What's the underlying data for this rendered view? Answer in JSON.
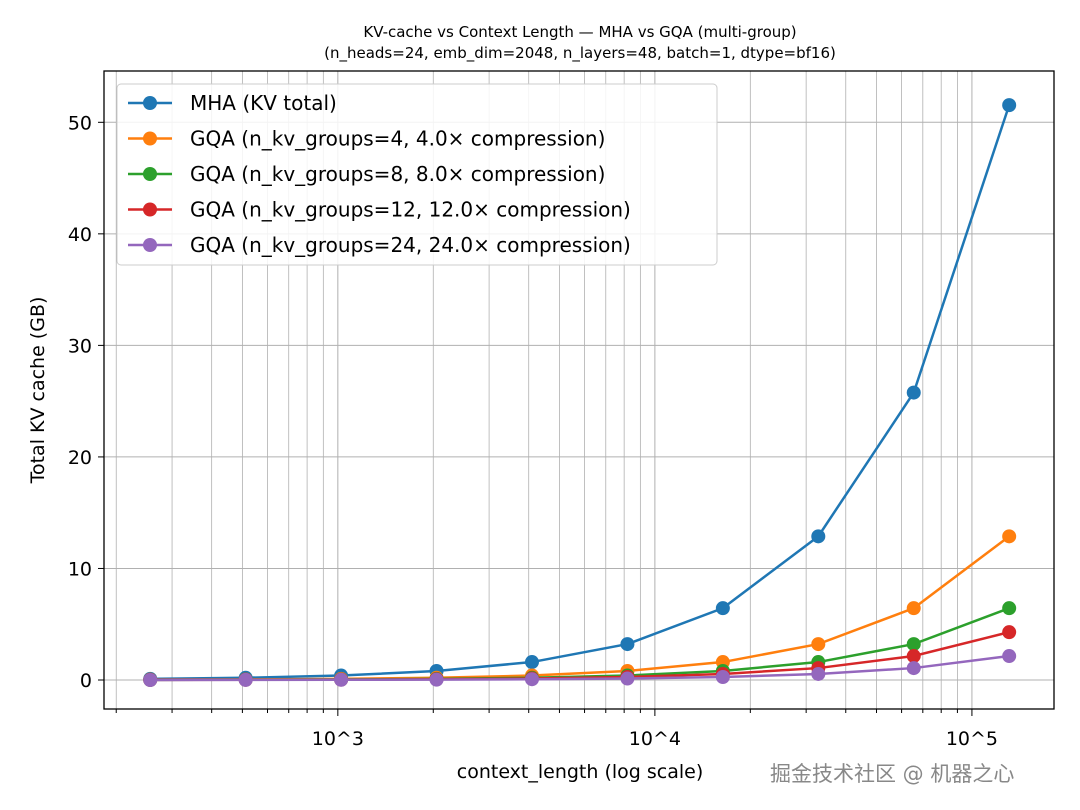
{
  "chart_data": {
    "type": "line",
    "title": "KV-cache vs Context Length — MHA vs GQA (multi-group)",
    "subtitle": "(n_heads=24, emb_dim=2048, n_layers=48, batch=1, dtype=bf16)",
    "xlabel": "context_length (log scale)",
    "ylabel": "Total KV cache (GB)",
    "xscale": "log",
    "xlim": [
      183,
      181500
    ],
    "ylim": [
      -2.6,
      54.6
    ],
    "xticks": [
      {
        "value": 1000,
        "label": "10^3"
      },
      {
        "value": 10000,
        "label": "10^4"
      },
      {
        "value": 100000,
        "label": "10^5"
      }
    ],
    "yticks": [
      0,
      10,
      20,
      30,
      40,
      50
    ],
    "grid": true,
    "legend_position": "top-left",
    "x": [
      256,
      512,
      1024,
      2048,
      4096,
      8192,
      16384,
      32768,
      65536,
      131072
    ],
    "series": [
      {
        "name": "MHA (KV total)",
        "color": "#1f77b4",
        "values": [
          0.1,
          0.2,
          0.4,
          0.81,
          1.61,
          3.22,
          6.44,
          12.88,
          25.77,
          51.54
        ]
      },
      {
        "name": "GQA (n_kv_groups=4, 4.0× compression)",
        "color": "#ff7f0e",
        "values": [
          0.03,
          0.05,
          0.1,
          0.2,
          0.4,
          0.81,
          1.61,
          3.22,
          6.44,
          12.88
        ]
      },
      {
        "name": "GQA (n_kv_groups=8, 8.0× compression)",
        "color": "#2ca02c",
        "values": [
          0.01,
          0.03,
          0.05,
          0.1,
          0.2,
          0.4,
          0.81,
          1.61,
          3.22,
          6.44
        ]
      },
      {
        "name": "GQA (n_kv_groups=12, 12.0× compression)",
        "color": "#d62728",
        "values": [
          0.01,
          0.02,
          0.03,
          0.07,
          0.13,
          0.27,
          0.54,
          1.07,
          2.15,
          4.29
        ]
      },
      {
        "name": "GQA (n_kv_groups=24, 24.0× compression)",
        "color": "#9467bd",
        "values": [
          0.0,
          0.01,
          0.02,
          0.03,
          0.07,
          0.13,
          0.27,
          0.54,
          1.07,
          2.15
        ]
      }
    ]
  },
  "watermark": "掘金技术社区 @ 机器之心"
}
